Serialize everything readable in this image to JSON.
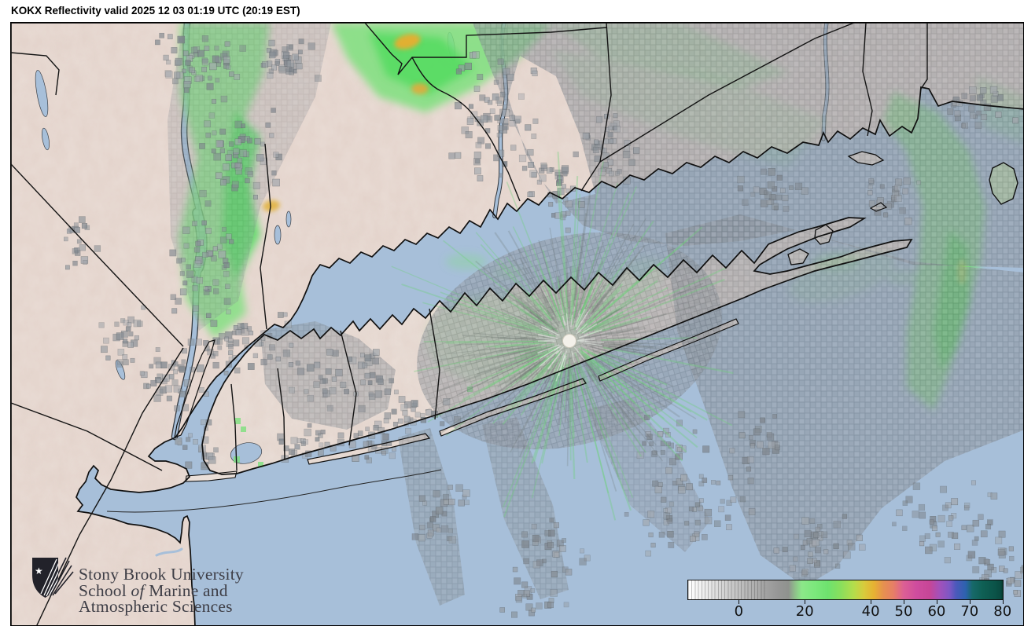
{
  "title": "KOKX Reflectivity valid 2025 12 03 01:19 UTC (20:19 EST)",
  "logo": {
    "line1": "Stony Brook University",
    "line2_prefix": "School ",
    "line2_italic": "of",
    "line2_suffix": " Marine and",
    "line3": "Atmospheric Sciences"
  },
  "colorbar": {
    "tick_labels": [
      "0",
      "20",
      "40",
      "50",
      "60",
      "70",
      "80"
    ],
    "tick_dbz": [
      0,
      20,
      40,
      50,
      60,
      70,
      80
    ],
    "min_dbz": -15.6,
    "max_dbz": 80.3,
    "stops": [
      [
        -15.6,
        "#ffffff"
      ],
      [
        -12,
        "#f2f2f2"
      ],
      [
        -8,
        "#e2e2e2"
      ],
      [
        -4,
        "#d0d0d0"
      ],
      [
        0,
        "#c0c0c0"
      ],
      [
        4,
        "#b1b1b1"
      ],
      [
        8,
        "#a2a2a2"
      ],
      [
        12,
        "#969696"
      ],
      [
        15,
        "#8f928e"
      ],
      [
        17,
        "#8fc08a"
      ],
      [
        19,
        "#8ce889"
      ],
      [
        23,
        "#7ce87c"
      ],
      [
        27,
        "#6ee26e"
      ],
      [
        31,
        "#8adf5c"
      ],
      [
        35,
        "#b5dd4b"
      ],
      [
        38,
        "#d8cb3c"
      ],
      [
        41,
        "#e6b232"
      ],
      [
        44,
        "#e69050"
      ],
      [
        47,
        "#e67e66"
      ],
      [
        50,
        "#dc6094"
      ],
      [
        54,
        "#cf4c9e"
      ],
      [
        58,
        "#c74697"
      ],
      [
        61,
        "#a351ba"
      ],
      [
        64,
        "#7f57c4"
      ],
      [
        66,
        "#4c59bb"
      ],
      [
        69,
        "#2c62ae"
      ],
      [
        71,
        "#17696a"
      ],
      [
        74,
        "#0f6055"
      ],
      [
        78,
        "#0b5348"
      ],
      [
        79.6,
        "#094a40"
      ],
      [
        80.3,
        "#063a2e"
      ]
    ]
  },
  "colors": {
    "water": "#a7bfd9",
    "land": "#e9dcd5",
    "boundary": "#141414",
    "echo_gray": "#8f969d",
    "echo_green": "#7ee07e",
    "echo_yellow": "#eeb23a"
  }
}
